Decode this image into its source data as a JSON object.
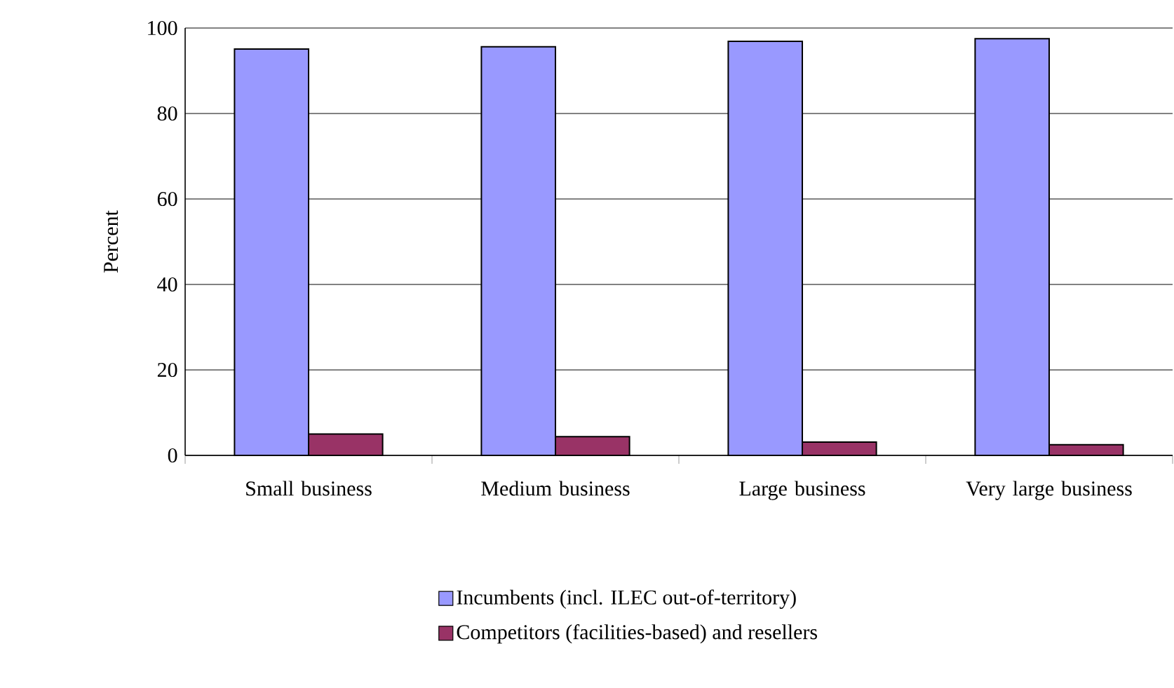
{
  "chart_data": {
    "type": "bar",
    "ylabel": "Percent",
    "categories": [
      "Small business",
      "Medium business",
      "Large business",
      "Very large business"
    ],
    "series": [
      {
        "name": "Incumbents (incl. ILEC out-of-territory)",
        "color": "#9999ff",
        "values": [
          95.1,
          95.6,
          96.9,
          97.5
        ]
      },
      {
        "name": "Competitors (facilities-based) and resellers",
        "color": "#993366",
        "values": [
          5.0,
          4.4,
          3.1,
          2.5
        ]
      }
    ],
    "ylim": [
      0,
      100
    ],
    "yticks": [
      0,
      20,
      40,
      60,
      80,
      100
    ],
    "grid": "y",
    "legend": "bottom"
  }
}
